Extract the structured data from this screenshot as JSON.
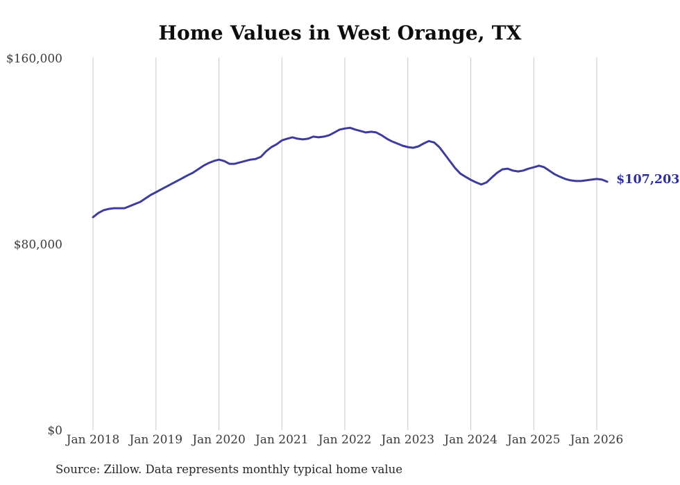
{
  "chart_data": {
    "type": "line",
    "title": "Home Values in West Orange, TX",
    "source_note": "Source: Zillow. Data represents monthly typical home value",
    "end_label": "$107,203",
    "latest_value": 107203,
    "x_start": "2018-01",
    "x_frequency": "monthly",
    "x_ticks": [
      "Jan 2018",
      "Jan 2019",
      "Jan 2020",
      "Jan 2021",
      "Jan 2022",
      "Jan 2023",
      "Jan 2024",
      "Jan 2025",
      "Jan 2026"
    ],
    "y_ticks": [
      {
        "label": "$0",
        "value": 0
      },
      {
        "label": "$80,000",
        "value": 80000
      },
      {
        "label": "$160,000",
        "value": 160000
      }
    ],
    "ylim": [
      0,
      160000
    ],
    "grid": "vertical-only",
    "legend": "none",
    "colors": {
      "line": "#3d3d99",
      "end_label": "#2e2e99",
      "grid": "#c8c8c8",
      "axis_text": "#3a3a3a",
      "title_text": "#0d0d0d",
      "source_text": "#262626",
      "background": "#ffffff"
    },
    "series": [
      {
        "name": "Typical home value (USD)",
        "values": [
          91900,
          93700,
          94900,
          95500,
          95800,
          95800,
          95800,
          96700,
          97600,
          98500,
          100000,
          101500,
          102700,
          103900,
          105100,
          106300,
          107500,
          108700,
          109900,
          111000,
          112500,
          114000,
          115200,
          116100,
          116700,
          116100,
          114900,
          114900,
          115500,
          116100,
          116700,
          117000,
          117900,
          120300,
          122100,
          123300,
          125000,
          125700,
          126300,
          125700,
          125400,
          125700,
          126600,
          126300,
          126600,
          127200,
          128400,
          129600,
          130100,
          130400,
          129600,
          129000,
          128400,
          128700,
          128400,
          127200,
          125700,
          124500,
          123600,
          122700,
          122100,
          121800,
          122400,
          123600,
          124700,
          124100,
          122100,
          119100,
          116100,
          113100,
          110700,
          109300,
          108000,
          106900,
          106000,
          106900,
          109000,
          111000,
          112500,
          112800,
          112000,
          111600,
          112000,
          112800,
          113400,
          114100,
          113400,
          111900,
          110400,
          109300,
          108400,
          107800,
          107500,
          107500,
          107800,
          108100,
          108400,
          108100,
          107203
        ]
      }
    ]
  }
}
